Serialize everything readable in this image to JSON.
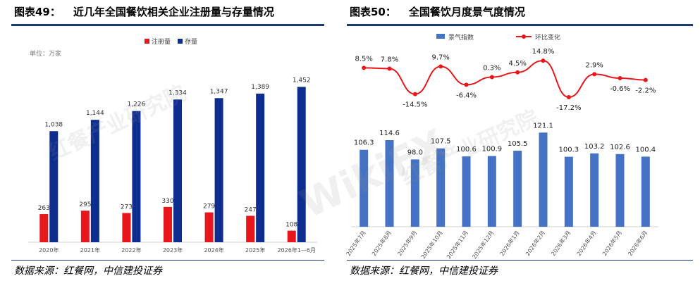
{
  "left": {
    "fig_label": "图表49：",
    "title": "近几年全国餐饮相关企业注册量与存量情况",
    "source": "数据来源：红餐网，中信建投证券"
  },
  "right": {
    "fig_label": "图表50：",
    "title": "全国餐饮月度景气度情况",
    "source": "数据来源：红餐网，中信建投证券"
  },
  "watermarks": [
    "红餐产业研究院",
    "红餐产业研究院",
    "WikiFX"
  ],
  "chart_data": [
    {
      "type": "bar",
      "unit_label": "单位：万家",
      "categories": [
        "2020年",
        "2021年",
        "2022年",
        "2023年",
        "2024年",
        "2025年",
        "2026年1—6月"
      ],
      "series": [
        {
          "name": "注册量",
          "color": "#e8171b",
          "values": [
            263,
            295,
            273,
            330,
            279,
            247,
            108
          ]
        },
        {
          "name": "存量",
          "color": "#0d2d8f",
          "values": [
            1038,
            1144,
            1226,
            1334,
            1347,
            1389,
            1452
          ]
        }
      ],
      "ylim": [
        0,
        1600
      ],
      "legend": "top-center",
      "grid": false,
      "value_labels": {
        "注册量": [
          "263",
          "295",
          "273",
          "330",
          "279",
          "247",
          "108"
        ],
        "存量": [
          "1,038",
          "1,144",
          "1,226",
          "1,334",
          "1,347",
          "1,389",
          "1,452"
        ]
      }
    },
    {
      "type": "bar",
      "categories": [
        "2025年7月",
        "2025年8月",
        "2025年9月",
        "2025年10月",
        "2025年11月",
        "2025年12月",
        "2026年1月",
        "2026年2月",
        "2026年3月",
        "2026年4月",
        "2026年5月",
        "2026年6月"
      ],
      "series": [
        {
          "name": "景气指数",
          "color": "#4472c4",
          "type": "bar",
          "values": [
            106.3,
            114.6,
            98.0,
            107.5,
            100.6,
            100.9,
            105.5,
            121.1,
            100.3,
            103.2,
            102.6,
            100.4
          ]
        },
        {
          "name": "环比变化",
          "color": "#e8171b",
          "type": "line",
          "values": [
            8.5,
            7.8,
            -14.5,
            9.7,
            -6.4,
            0.3,
            4.5,
            14.8,
            -17.2,
            2.9,
            -0.6,
            -2.2
          ]
        }
      ],
      "value_labels": {
        "景气指数": [
          "106.3",
          "114.6",
          "98.0",
          "107.5",
          "100.6",
          "100.9",
          "105.5",
          "121.1",
          "100.3",
          "103.2",
          "102.6",
          "100.4"
        ],
        "环比变化": [
          "8.5%",
          "7.8%",
          "-14.5%",
          "9.7%",
          "-6.4%",
          "0.3%",
          "4.5%",
          "14.8%",
          "-17.2%",
          "2.9%",
          "-0.6%",
          "-2.2%"
        ]
      },
      "legend": "top-center",
      "grid": false
    }
  ]
}
